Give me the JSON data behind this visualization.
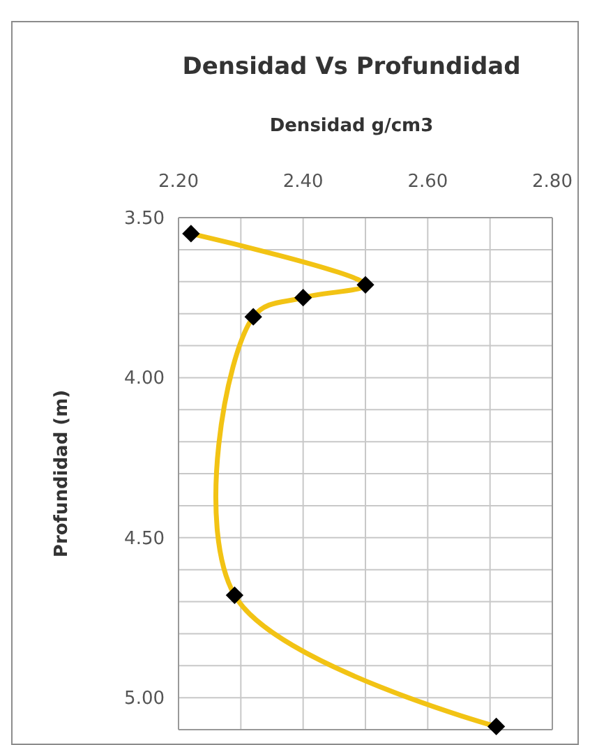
{
  "chart_data": {
    "type": "line",
    "title": "Densidad Vs Profundidad",
    "xlabel": "Densidad g/cm3",
    "ylabel": "Profundidad (m)",
    "x": [
      2.22,
      2.5,
      2.4,
      2.32,
      2.29,
      2.71
    ],
    "series": [
      {
        "color": "#f2c314",
        "values": [
          3.55,
          3.71,
          3.75,
          3.81,
          4.68,
          5.09
        ]
      }
    ],
    "xlim": [
      2.2,
      2.8
    ],
    "xticks": [
      {
        "value": 2.2,
        "label": "2.20"
      },
      {
        "value": 2.4,
        "label": "2.40"
      },
      {
        "value": 2.6,
        "label": "2.60"
      },
      {
        "value": 2.8,
        "label": "2.80"
      }
    ],
    "ylim": [
      5.1,
      3.5
    ],
    "yticks": [
      {
        "value": 3.5,
        "label": "3.50"
      },
      {
        "value": 4.0,
        "label": "4.00"
      },
      {
        "value": 4.5,
        "label": "4.50"
      },
      {
        "value": 5.0,
        "label": "5.00"
      }
    ],
    "grid": true,
    "marker": "diamond",
    "line_style": "solid"
  }
}
